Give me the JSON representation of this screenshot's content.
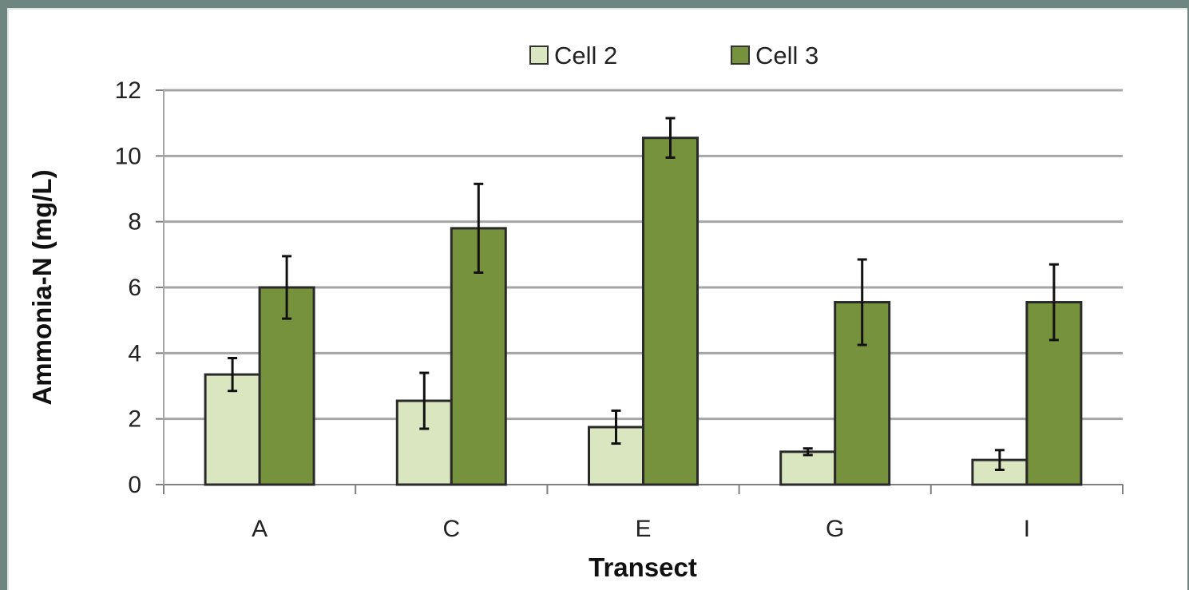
{
  "chart_data": {
    "type": "bar",
    "title": "",
    "xlabel": "Transect",
    "ylabel": "Ammonia-N (mg/L)",
    "categories": [
      "A",
      "C",
      "E",
      "G",
      "I"
    ],
    "ylim": [
      0,
      12
    ],
    "yticks": [
      0,
      2,
      4,
      6,
      8,
      10,
      12
    ],
    "grid": true,
    "legend_position": "top",
    "series": [
      {
        "name": "Cell 2",
        "color": "#d9e6c0",
        "values": [
          3.35,
          2.55,
          1.75,
          1.0,
          0.75
        ],
        "error": [
          0.5,
          0.85,
          0.5,
          0.1,
          0.3
        ]
      },
      {
        "name": "Cell 3",
        "color": "#76923c",
        "values": [
          6.0,
          7.8,
          10.55,
          5.55,
          5.55
        ],
        "error": [
          0.95,
          1.35,
          0.6,
          1.3,
          1.15
        ]
      }
    ]
  }
}
